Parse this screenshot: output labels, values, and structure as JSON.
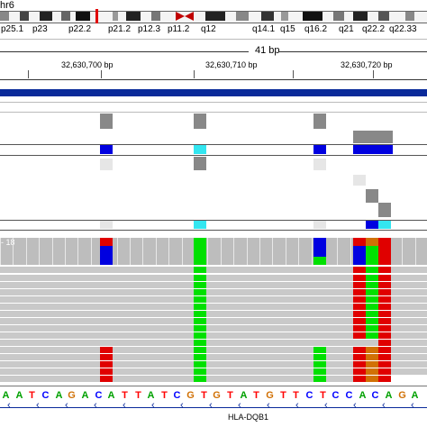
{
  "ideogram": {
    "chromosome_label": "hr6",
    "bands": [
      "p25.1",
      "p23",
      "p22.2",
      "p21.2",
      "p12.3",
      "p11.2",
      "q12",
      "q14.1",
      "q15",
      "q16.2",
      "q21",
      "q22.2",
      "q22.33"
    ]
  },
  "ruler": {
    "span_label": "41 bp",
    "positions": [
      "32,630,700 bp",
      "32,630,710 bp",
      "32,630,720 bp"
    ]
  },
  "coverage_track": {
    "range_label": "- 18"
  },
  "sequence": [
    "A",
    "A",
    "T",
    "C",
    "A",
    "G",
    "A",
    "C",
    "A",
    "T",
    "T",
    "A",
    "T",
    "C",
    "G",
    "T",
    "G",
    "T",
    "A",
    "T",
    "G",
    "T",
    "T",
    "C",
    "T",
    "C",
    "C",
    "A",
    "C",
    "A",
    "G",
    "A"
  ],
  "gene": {
    "name": "HLA-DQB1"
  },
  "colors": {
    "A": "#00a000",
    "C": "#0000ff",
    "G": "#d17105",
    "T": "#ff0000",
    "mismatch_T": "#e00000",
    "mismatch_C": "#0000e0",
    "mismatch_A": "#00e000",
    "gene_track": "#0a2a9a",
    "indel_cyan": "#33e6f0"
  }
}
